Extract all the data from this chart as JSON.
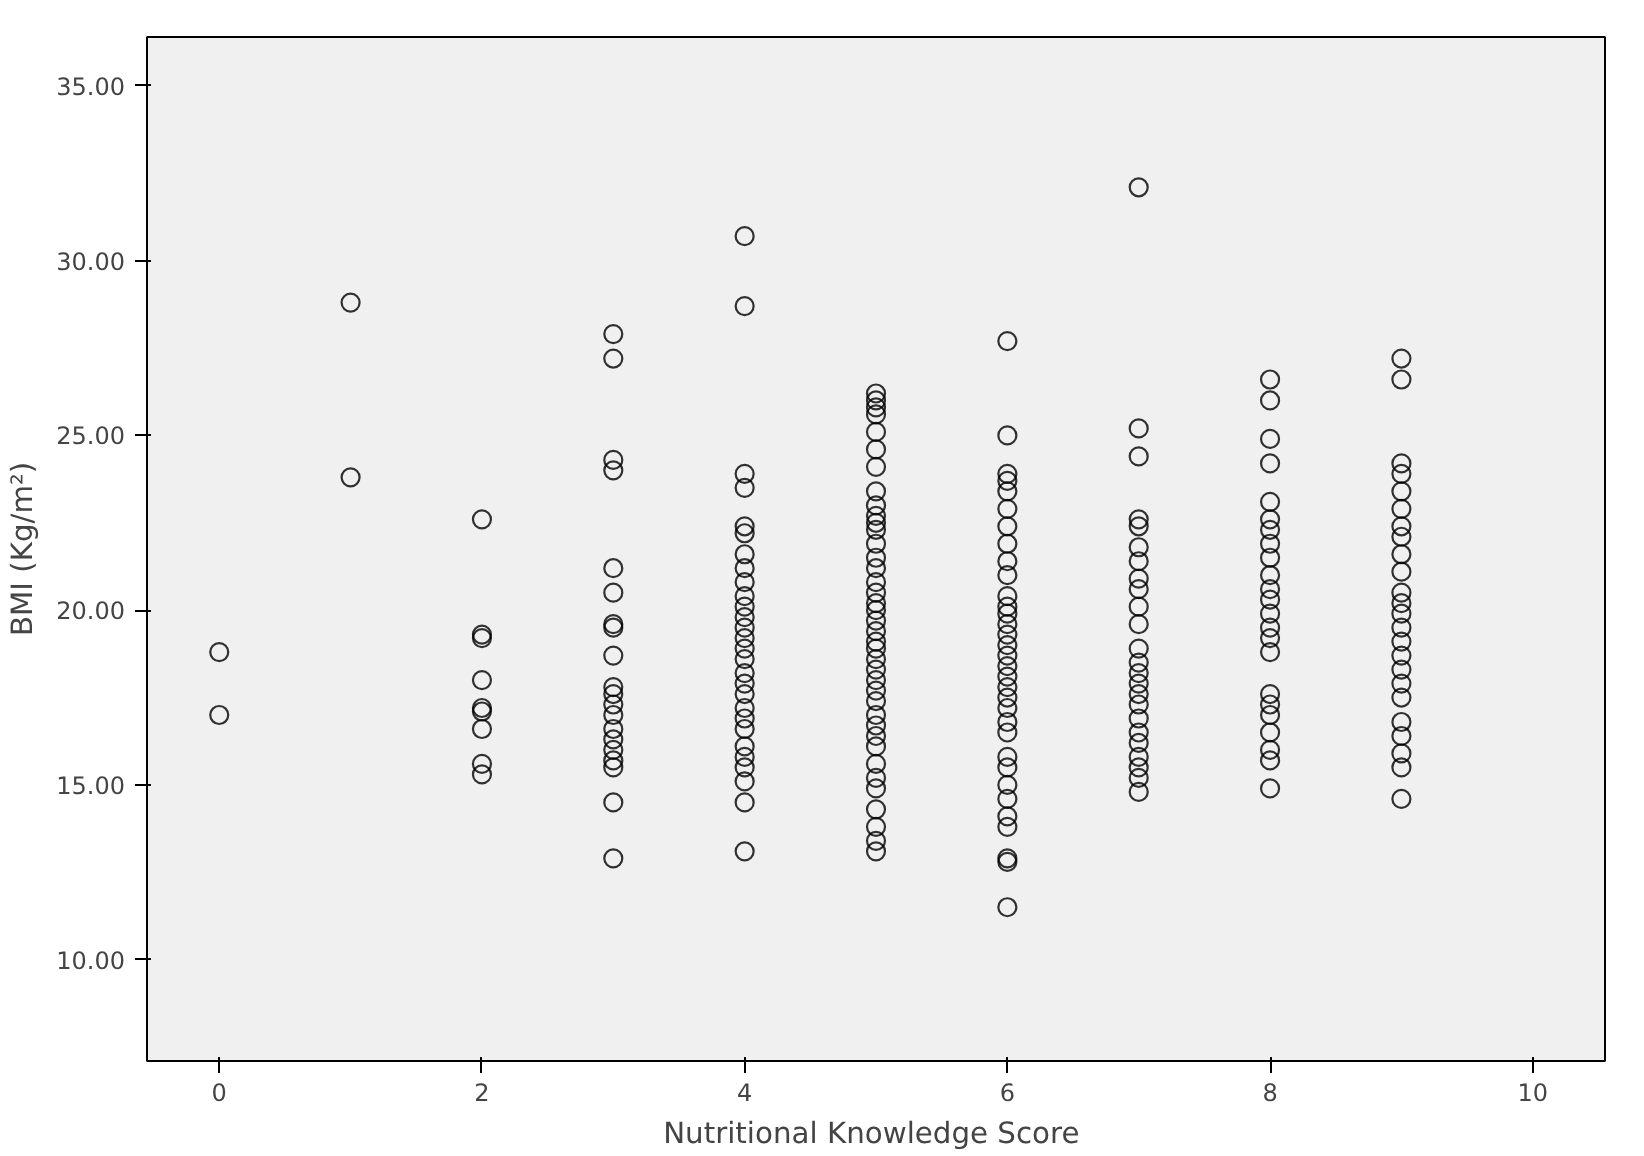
{
  "chart_data": {
    "type": "scatter",
    "xlabel": "Nutritional Knowledge  Score",
    "ylabel": "BMI (Kg/m²)",
    "xlim": [
      -0.55,
      10.55
    ],
    "ylim": [
      7.1,
      36.4
    ],
    "xticks": [
      0,
      2,
      4,
      6,
      8,
      10
    ],
    "yticks": [
      {
        "value": 10,
        "label": "10.00"
      },
      {
        "value": 15,
        "label": "15.00"
      },
      {
        "value": 20,
        "label": "20.00"
      },
      {
        "value": 25,
        "label": "25.00"
      },
      {
        "value": 30,
        "label": "30.00"
      },
      {
        "value": 35,
        "label": "35.00"
      }
    ],
    "grid": false,
    "marker": "circle",
    "series": [
      {
        "color": "#000000",
        "x": [
          0,
          0
        ],
        "values": [
          18.8,
          17.0
        ]
      },
      {
        "color": "#000000",
        "x": [
          1,
          1
        ],
        "values": [
          28.8,
          23.8
        ]
      },
      {
        "color": "#000000",
        "x": [
          2,
          2,
          2,
          2,
          2,
          2,
          2,
          2,
          2
        ],
        "values": [
          22.6,
          19.3,
          19.2,
          18.0,
          17.2,
          17.1,
          16.6,
          15.6,
          15.3
        ]
      },
      {
        "color": "#000000",
        "x": [
          3,
          3,
          3,
          3,
          3,
          3,
          3,
          3,
          3,
          3,
          3,
          3,
          3,
          3,
          3,
          3,
          3,
          3,
          3,
          3
        ],
        "values": [
          27.9,
          27.2,
          24.3,
          24.0,
          21.2,
          20.5,
          19.6,
          19.5,
          18.7,
          17.8,
          17.6,
          17.3,
          17.0,
          16.6,
          16.3,
          16.0,
          15.7,
          15.5,
          14.5,
          12.9
        ]
      },
      {
        "color": "#000000",
        "x": [
          4,
          4,
          4,
          4,
          4,
          4,
          4,
          4,
          4,
          4,
          4,
          4,
          4,
          4,
          4,
          4,
          4,
          4,
          4,
          4,
          4,
          4,
          4,
          4,
          4,
          4,
          4,
          4
        ],
        "values": [
          30.7,
          28.7,
          23.9,
          23.5,
          22.4,
          22.2,
          21.6,
          21.2,
          20.8,
          20.4,
          20.1,
          19.8,
          19.5,
          19.2,
          18.9,
          18.6,
          18.2,
          17.9,
          17.6,
          17.2,
          16.9,
          16.6,
          16.1,
          15.8,
          15.5,
          15.1,
          14.5,
          13.1
        ]
      },
      {
        "color": "#000000",
        "x": [
          5,
          5,
          5,
          5,
          5,
          5,
          5,
          5,
          5,
          5,
          5,
          5,
          5,
          5,
          5,
          5,
          5,
          5,
          5,
          5,
          5,
          5,
          5,
          5,
          5,
          5,
          5,
          5,
          5,
          5,
          5,
          5,
          5,
          5,
          5,
          5,
          5,
          5,
          5
        ],
        "values": [
          26.2,
          26.0,
          25.8,
          25.6,
          25.1,
          24.6,
          24.1,
          23.4,
          23.0,
          22.7,
          22.5,
          22.3,
          21.9,
          21.5,
          21.2,
          20.8,
          20.5,
          20.2,
          20.0,
          19.7,
          19.4,
          19.1,
          18.9,
          18.6,
          18.3,
          18.0,
          17.7,
          17.4,
          17.0,
          16.7,
          16.4,
          16.1,
          15.6,
          15.2,
          14.9,
          14.3,
          13.8,
          13.4,
          13.1
        ]
      },
      {
        "color": "#000000",
        "x": [
          6,
          6,
          6,
          6,
          6,
          6,
          6,
          6,
          6,
          6,
          6,
          6,
          6,
          6,
          6,
          6,
          6,
          6,
          6,
          6,
          6,
          6,
          6,
          6,
          6,
          6,
          6,
          6,
          6,
          6,
          6,
          6,
          6
        ],
        "values": [
          27.7,
          25.0,
          23.9,
          23.7,
          23.4,
          22.9,
          22.4,
          21.9,
          21.4,
          21.0,
          20.4,
          20.1,
          19.9,
          19.6,
          19.3,
          19.0,
          18.7,
          18.4,
          18.1,
          17.8,
          17.5,
          17.2,
          16.8,
          16.5,
          15.8,
          15.5,
          15.0,
          14.6,
          14.1,
          13.8,
          12.9,
          12.8,
          11.5
        ]
      },
      {
        "color": "#000000",
        "x": [
          7,
          7,
          7,
          7,
          7,
          7,
          7,
          7,
          7,
          7,
          7,
          7,
          7,
          7,
          7,
          7,
          7,
          7,
          7,
          7,
          7,
          7,
          7,
          7
        ],
        "values": [
          32.1,
          25.2,
          24.4,
          22.6,
          22.4,
          21.8,
          21.4,
          20.9,
          20.6,
          20.1,
          19.6,
          18.9,
          18.5,
          18.2,
          17.9,
          17.6,
          17.3,
          16.9,
          16.5,
          16.2,
          15.8,
          15.5,
          15.2,
          14.8
        ]
      },
      {
        "color": "#000000",
        "x": [
          8,
          8,
          8,
          8,
          8,
          8,
          8,
          8,
          8,
          8,
          8,
          8,
          8,
          8,
          8,
          8,
          8,
          8,
          8,
          8,
          8,
          8,
          8
        ],
        "values": [
          26.6,
          26.0,
          24.9,
          24.2,
          23.1,
          22.6,
          22.3,
          21.9,
          21.5,
          21.0,
          20.6,
          20.3,
          19.9,
          19.5,
          19.2,
          18.8,
          17.6,
          17.3,
          17.0,
          16.5,
          16.0,
          15.7,
          14.9
        ]
      },
      {
        "color": "#000000",
        "x": [
          9,
          9,
          9,
          9,
          9,
          9,
          9,
          9,
          9,
          9,
          9,
          9,
          9,
          9,
          9,
          9,
          9,
          9,
          9,
          9,
          9,
          9,
          9,
          9
        ],
        "values": [
          27.2,
          26.6,
          24.2,
          23.9,
          23.4,
          22.9,
          22.4,
          22.1,
          21.6,
          21.1,
          20.5,
          20.2,
          19.9,
          19.5,
          19.1,
          18.7,
          18.3,
          17.9,
          17.5,
          16.8,
          16.4,
          15.9,
          15.5,
          14.6
        ]
      }
    ]
  }
}
